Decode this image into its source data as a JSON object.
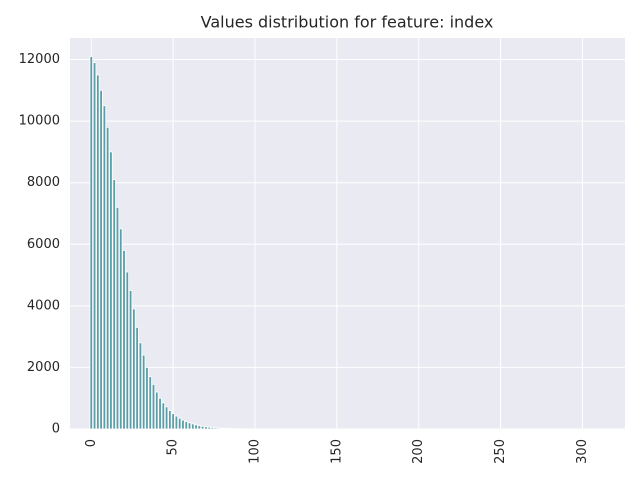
{
  "chart_data": {
    "type": "bar",
    "title": "Values distribution for feature: index",
    "x": [
      0,
      2,
      4,
      6,
      8,
      10,
      12,
      14,
      16,
      18,
      20,
      22,
      24,
      26,
      28,
      30,
      32,
      34,
      36,
      38,
      40,
      42,
      44,
      46,
      48,
      50,
      52,
      54,
      56,
      58,
      60,
      62,
      64,
      66,
      68,
      70,
      72,
      74,
      76,
      78,
      80,
      82,
      84,
      86,
      88,
      90,
      92,
      94,
      96,
      98,
      100
    ],
    "values": [
      12100,
      11900,
      11500,
      11000,
      10500,
      9800,
      9000,
      8100,
      7200,
      6500,
      5800,
      5100,
      4500,
      3900,
      3300,
      2800,
      2400,
      2000,
      1700,
      1450,
      1200,
      1000,
      850,
      720,
      600,
      500,
      420,
      350,
      290,
      240,
      200,
      165,
      135,
      110,
      90,
      75,
      60,
      50,
      40,
      32,
      26,
      21,
      17,
      14,
      11,
      9,
      7,
      6,
      5,
      4,
      3
    ],
    "color": "#5b9ea8",
    "xlim": [
      -13,
      326
    ],
    "xticks": [
      0,
      50,
      100,
      150,
      200,
      250,
      300
    ],
    "ylim": [
      0,
      12700
    ],
    "yticks": [
      0,
      2000,
      4000,
      6000,
      8000,
      10000,
      12000
    ],
    "grid": true
  }
}
